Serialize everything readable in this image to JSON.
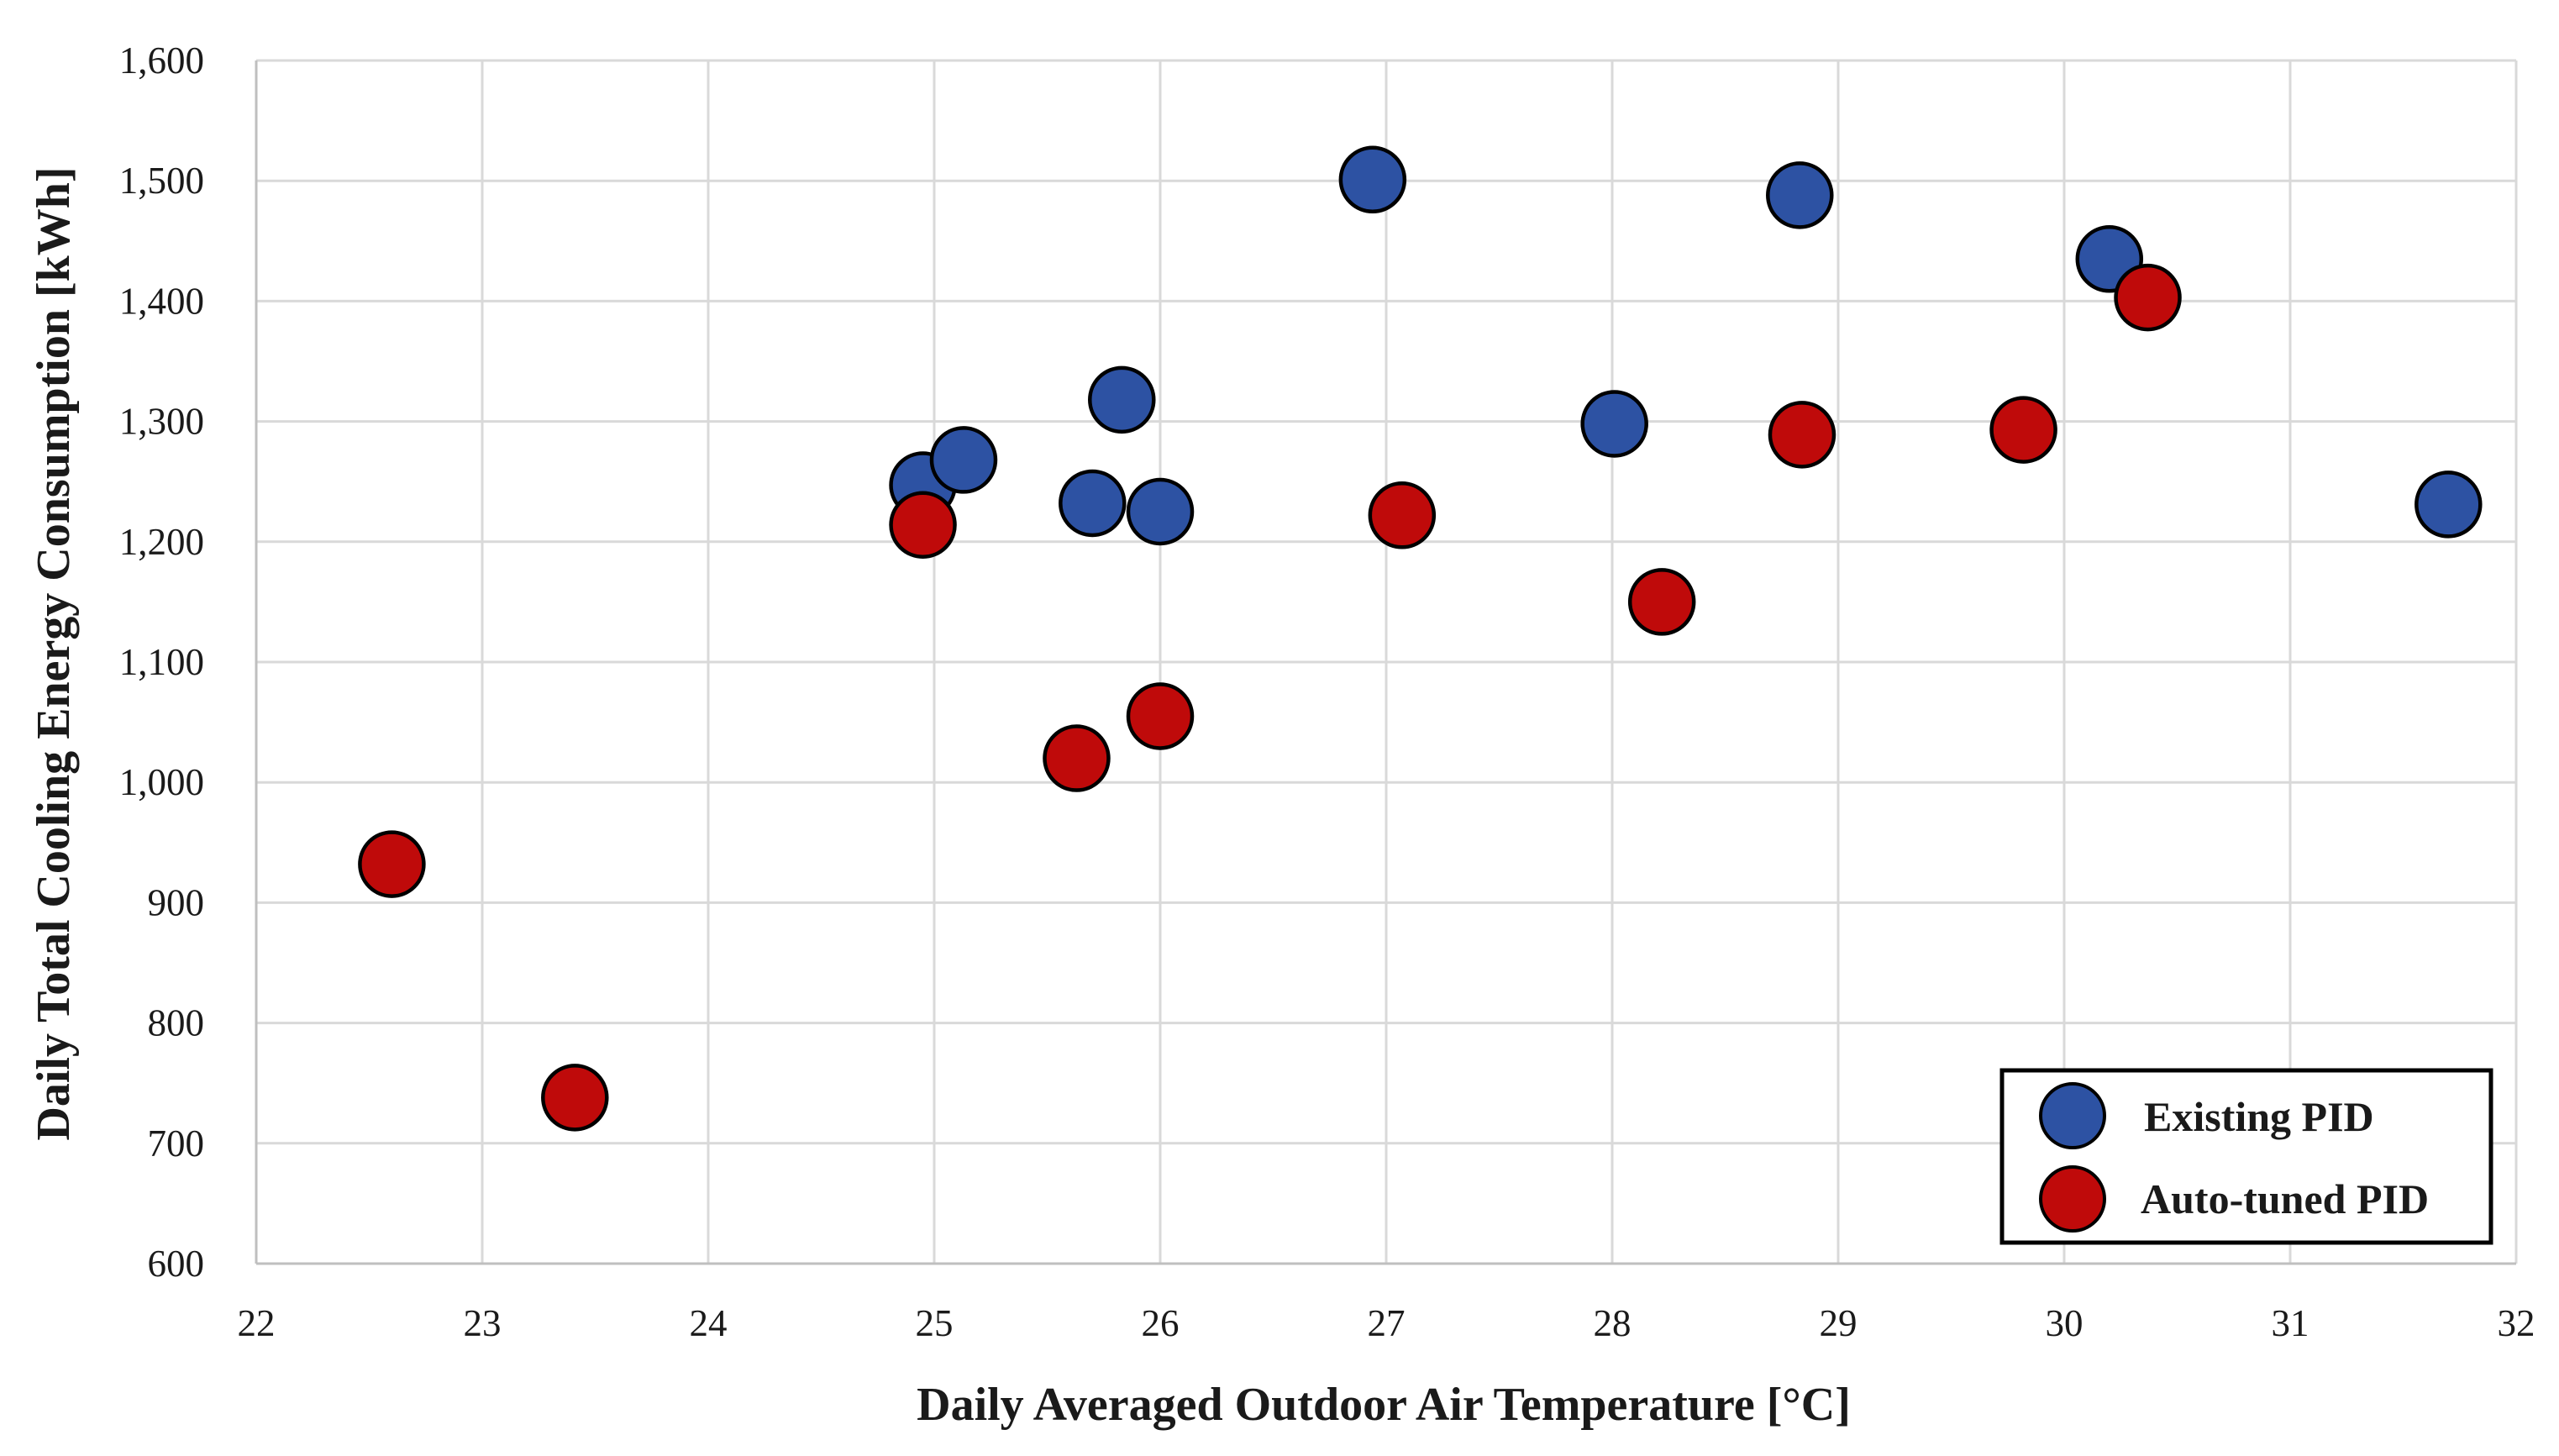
{
  "chart_data": {
    "type": "scatter",
    "title": "",
    "xlabel": "Daily Averaged Outdoor Air Temperature [°C]",
    "ylabel": "Daily Total  Cooling Energy Consumption  [kWh]",
    "xlim": [
      22,
      32
    ],
    "ylim": [
      600,
      1600
    ],
    "x_ticks": [
      22,
      23,
      24,
      25,
      26,
      27,
      28,
      29,
      30,
      31,
      32
    ],
    "y_ticks": [
      600,
      700,
      800,
      900,
      1000,
      1100,
      1200,
      1300,
      1400,
      1500,
      1600
    ],
    "y_tick_labels": [
      "600",
      "700",
      "800",
      "900",
      "1,000",
      "1,100",
      "1,200",
      "1,300",
      "1,400",
      "1,500",
      "1,600"
    ],
    "grid": true,
    "legend_position": "bottom-right",
    "series": [
      {
        "name": "Existing PID",
        "color": "#2d52a3",
        "points": [
          [
            24.95,
            1247
          ],
          [
            25.13,
            1268
          ],
          [
            25.7,
            1232
          ],
          [
            25.83,
            1318
          ],
          [
            26.0,
            1225
          ],
          [
            26.94,
            1501
          ],
          [
            28.01,
            1298
          ],
          [
            28.83,
            1488
          ],
          [
            30.2,
            1435
          ],
          [
            31.7,
            1231
          ]
        ]
      },
      {
        "name": "Auto-tuned PID",
        "color": "#bf0a0a",
        "points": [
          [
            22.6,
            932
          ],
          [
            23.41,
            738
          ],
          [
            24.95,
            1214
          ],
          [
            25.63,
            1020
          ],
          [
            26.0,
            1055
          ],
          [
            27.07,
            1222
          ],
          [
            28.22,
            1150
          ],
          [
            28.84,
            1289
          ],
          [
            29.82,
            1293
          ],
          [
            30.37,
            1403
          ]
        ]
      }
    ]
  }
}
